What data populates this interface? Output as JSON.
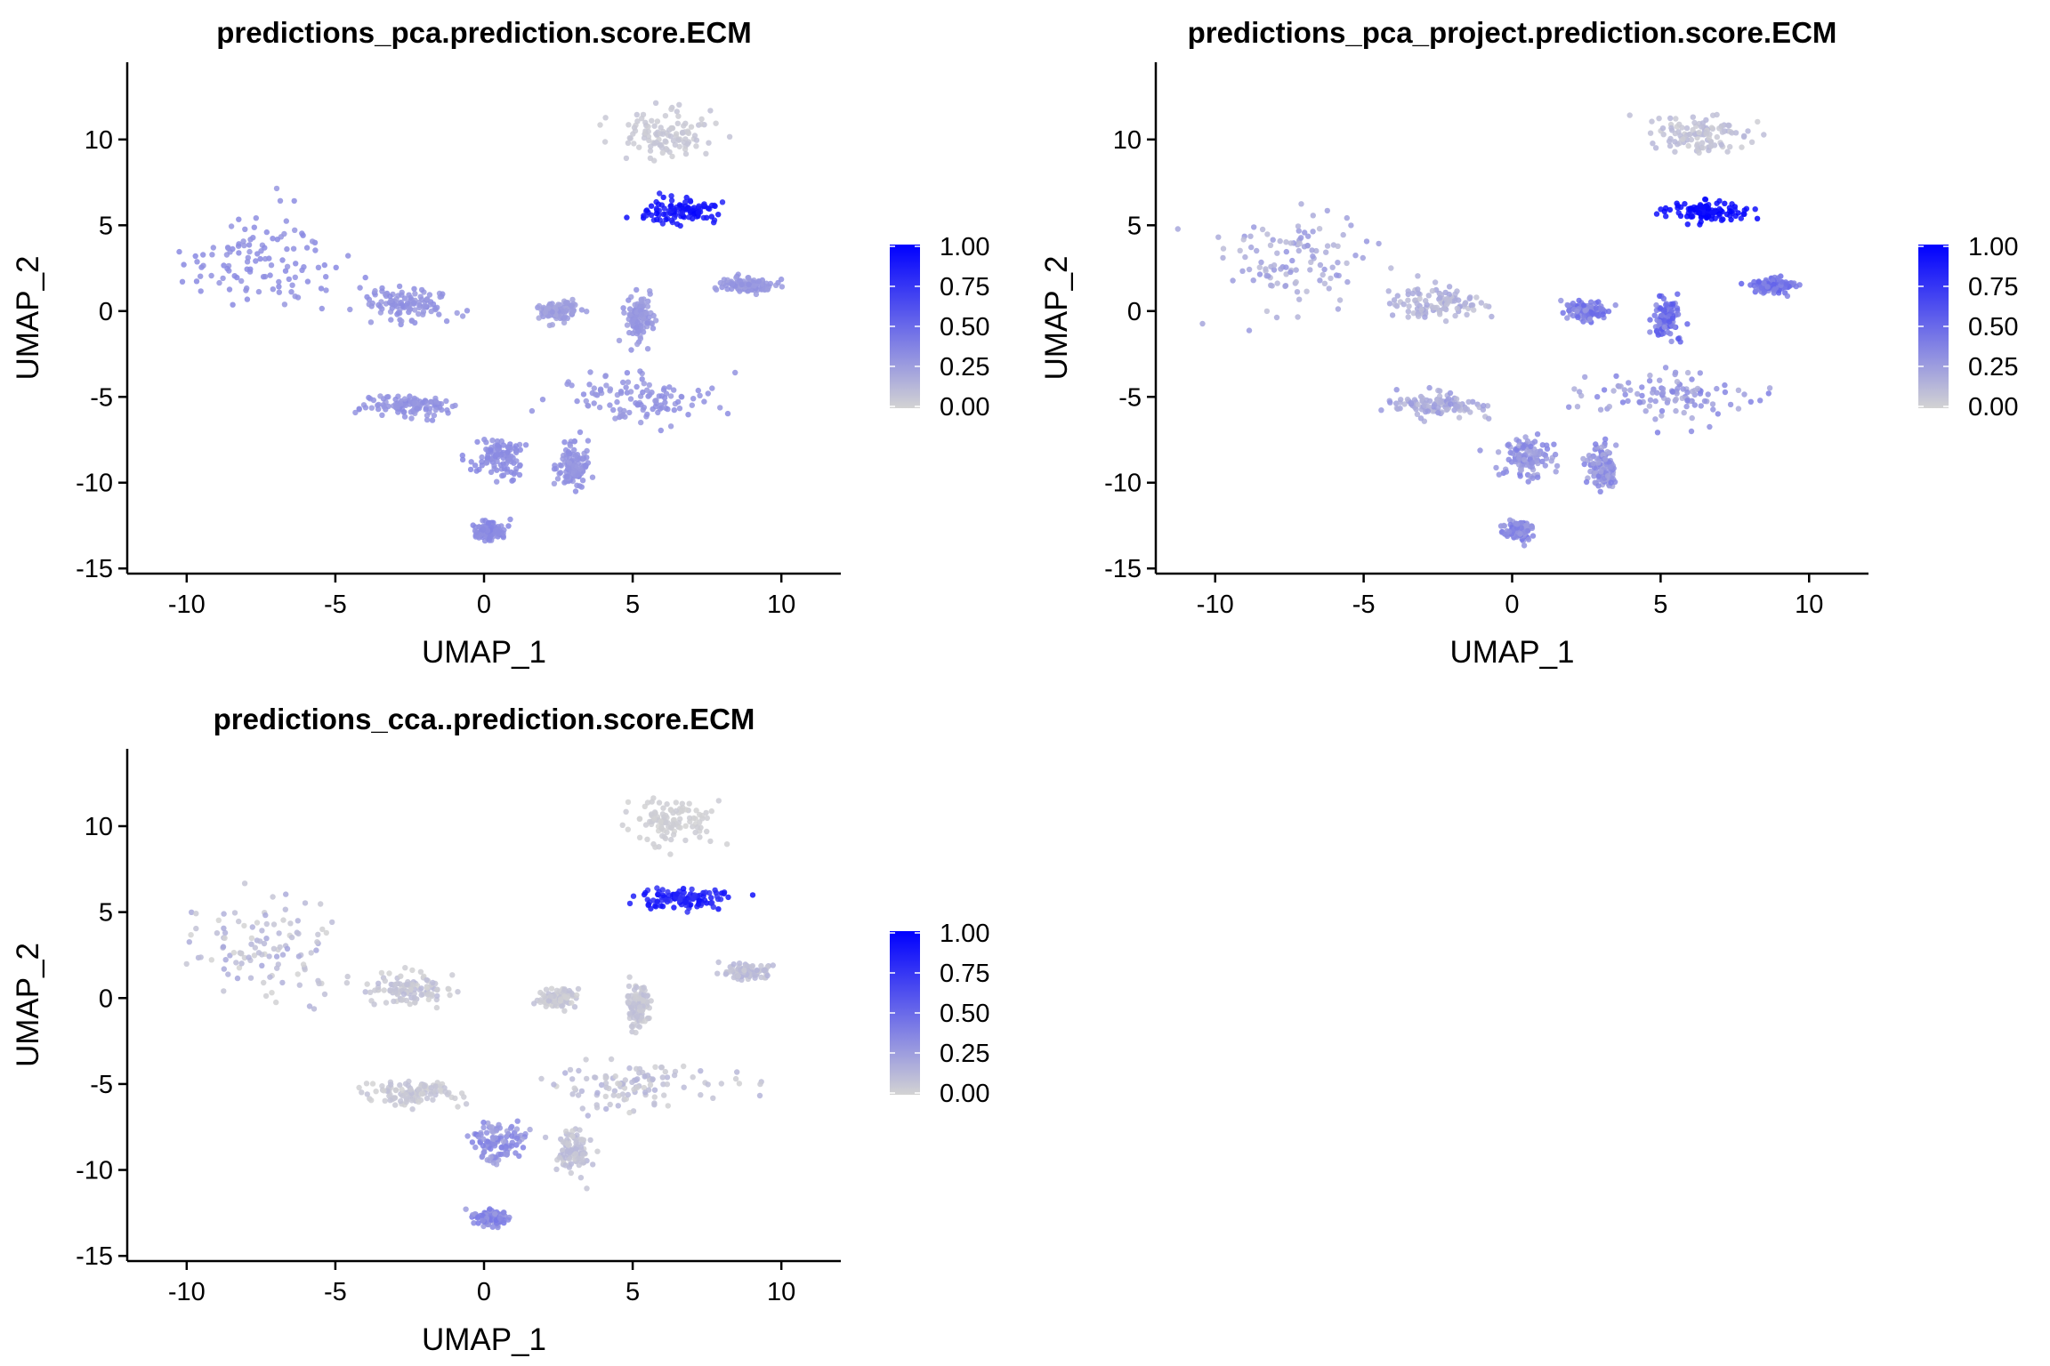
{
  "colors": {
    "low": "#d3d3d3",
    "high": "#0000ff",
    "axis": "#000000"
  },
  "chart_data": [
    {
      "type": "scatter",
      "title": "predictions_pca.prediction.score.ECM",
      "xlabel": "UMAP_1",
      "ylabel": "UMAP_2",
      "xlim": [
        -12,
        12
      ],
      "ylim": [
        -15.3,
        14.5
      ],
      "xticks": [
        -10,
        -5,
        0,
        5,
        10
      ],
      "yticks": [
        -15,
        -10,
        -5,
        0,
        5,
        10
      ],
      "x_tick_labels": [
        "-10",
        "-5",
        "0",
        "5",
        "10"
      ],
      "y_tick_labels": [
        "-15",
        "-10",
        "-5",
        "0",
        "5",
        "10"
      ],
      "legend": {
        "placement": "right",
        "values": [
          "1.00",
          "0.75",
          "0.50",
          "0.25",
          "0.00"
        ]
      },
      "grid": false,
      "clusters": [
        {
          "name": "c1",
          "center": [
            -7.5,
            3.0
          ],
          "spread": [
            2.3,
            2.6
          ],
          "score": 0.32,
          "variance": 0.04
        },
        {
          "name": "c2",
          "center": [
            -2.6,
            0.5
          ],
          "spread": [
            1.4,
            0.9
          ],
          "score": 0.3,
          "variance": 0.04
        },
        {
          "name": "c3",
          "center": [
            6.3,
            10.3
          ],
          "spread": [
            1.4,
            1.2
          ],
          "score": 0.05,
          "variance": 0.03
        },
        {
          "name": "c4",
          "center": [
            6.6,
            5.8
          ],
          "spread": [
            1.3,
            0.55
          ],
          "score": 0.9,
          "variance": 0.08
        },
        {
          "name": "c5",
          "center": [
            8.8,
            1.5
          ],
          "spread": [
            0.7,
            0.4
          ],
          "score": 0.28,
          "variance": 0.04
        },
        {
          "name": "c6",
          "center": [
            5.0,
            -5.0
          ],
          "spread": [
            2.5,
            1.3
          ],
          "score": 0.3,
          "variance": 0.04
        },
        {
          "name": "c7",
          "center": [
            -2.5,
            -5.5
          ],
          "spread": [
            1.5,
            0.6
          ],
          "score": 0.3,
          "variance": 0.04
        },
        {
          "name": "c8",
          "center": [
            0.5,
            -8.5
          ],
          "spread": [
            0.8,
            1.0
          ],
          "score": 0.33,
          "variance": 0.04
        },
        {
          "name": "c9",
          "center": [
            0.2,
            -12.8
          ],
          "spread": [
            0.5,
            0.5
          ],
          "score": 0.35,
          "variance": 0.04
        },
        {
          "name": "c10",
          "center": [
            3.0,
            -9.0
          ],
          "spread": [
            0.5,
            1.1
          ],
          "score": 0.3,
          "variance": 0.04
        },
        {
          "name": "c11",
          "center": [
            5.2,
            -0.5
          ],
          "spread": [
            0.4,
            1.2
          ],
          "score": 0.28,
          "variance": 0.04
        },
        {
          "name": "c12",
          "center": [
            2.5,
            0.0
          ],
          "spread": [
            0.6,
            0.5
          ],
          "score": 0.25,
          "variance": 0.04
        }
      ]
    },
    {
      "type": "scatter",
      "title": "predictions_pca_project.prediction.score.ECM",
      "xlabel": "UMAP_1",
      "ylabel": "UMAP_2",
      "xlim": [
        -12,
        12
      ],
      "ylim": [
        -15.3,
        14.5
      ],
      "xticks": [
        -10,
        -5,
        0,
        5,
        10
      ],
      "yticks": [
        -15,
        -10,
        -5,
        0,
        5,
        10
      ],
      "x_tick_labels": [
        "-10",
        "-5",
        "0",
        "5",
        "10"
      ],
      "y_tick_labels": [
        "-15",
        "-10",
        "-5",
        "0",
        "5",
        "10"
      ],
      "legend": {
        "placement": "right",
        "values": [
          "1.00",
          "0.75",
          "0.50",
          "0.25",
          "0.00"
        ]
      },
      "grid": false,
      "clusters": [
        {
          "name": "c1",
          "center": [
            -7.5,
            3.0
          ],
          "spread": [
            2.3,
            2.6
          ],
          "score": 0.2,
          "variance": 0.1
        },
        {
          "name": "c2",
          "center": [
            -2.6,
            0.5
          ],
          "spread": [
            1.4,
            0.9
          ],
          "score": 0.15,
          "variance": 0.08
        },
        {
          "name": "c3",
          "center": [
            6.3,
            10.3
          ],
          "spread": [
            1.4,
            1.2
          ],
          "score": 0.08,
          "variance": 0.06
        },
        {
          "name": "c4",
          "center": [
            6.6,
            5.8
          ],
          "spread": [
            1.3,
            0.55
          ],
          "score": 0.95,
          "variance": 0.05
        },
        {
          "name": "c5",
          "center": [
            8.8,
            1.5
          ],
          "spread": [
            0.7,
            0.4
          ],
          "score": 0.45,
          "variance": 0.1
        },
        {
          "name": "c6",
          "center": [
            5.0,
            -5.0
          ],
          "spread": [
            2.5,
            1.3
          ],
          "score": 0.28,
          "variance": 0.12
        },
        {
          "name": "c7",
          "center": [
            -2.5,
            -5.5
          ],
          "spread": [
            1.5,
            0.6
          ],
          "score": 0.2,
          "variance": 0.1
        },
        {
          "name": "c8",
          "center": [
            0.5,
            -8.5
          ],
          "spread": [
            0.8,
            1.0
          ],
          "score": 0.3,
          "variance": 0.1
        },
        {
          "name": "c9",
          "center": [
            0.2,
            -12.8
          ],
          "spread": [
            0.5,
            0.5
          ],
          "score": 0.35,
          "variance": 0.1
        },
        {
          "name": "c10",
          "center": [
            3.0,
            -9.0
          ],
          "spread": [
            0.5,
            1.1
          ],
          "score": 0.3,
          "variance": 0.1
        },
        {
          "name": "c11",
          "center": [
            5.2,
            -0.5
          ],
          "spread": [
            0.4,
            1.2
          ],
          "score": 0.45,
          "variance": 0.15
        },
        {
          "name": "c12",
          "center": [
            2.5,
            0.0
          ],
          "spread": [
            0.6,
            0.5
          ],
          "score": 0.4,
          "variance": 0.12
        }
      ]
    },
    {
      "type": "scatter",
      "title": "predictions_cca..prediction.score.ECM",
      "xlabel": "UMAP_1",
      "ylabel": "UMAP_2",
      "xlim": [
        -12,
        12
      ],
      "ylim": [
        -15.3,
        14.5
      ],
      "xticks": [
        -10,
        -5,
        0,
        5,
        10
      ],
      "yticks": [
        -15,
        -10,
        -5,
        0,
        5,
        10
      ],
      "x_tick_labels": [
        "-10",
        "-5",
        "0",
        "5",
        "10"
      ],
      "y_tick_labels": [
        "-15",
        "-10",
        "-5",
        "0",
        "5",
        "10"
      ],
      "legend": {
        "placement": "right",
        "values": [
          "1.00",
          "0.75",
          "0.50",
          "0.25",
          "0.00"
        ]
      },
      "grid": false,
      "clusters": [
        {
          "name": "c1",
          "center": [
            -7.5,
            3.0
          ],
          "spread": [
            2.3,
            2.6
          ],
          "score": 0.1,
          "variance": 0.12
        },
        {
          "name": "c2",
          "center": [
            -2.6,
            0.5
          ],
          "spread": [
            1.4,
            0.9
          ],
          "score": 0.06,
          "variance": 0.06
        },
        {
          "name": "c3",
          "center": [
            6.3,
            10.3
          ],
          "spread": [
            1.4,
            1.2
          ],
          "score": 0.02,
          "variance": 0.02
        },
        {
          "name": "c4",
          "center": [
            6.6,
            5.8
          ],
          "spread": [
            1.3,
            0.55
          ],
          "score": 0.85,
          "variance": 0.12
        },
        {
          "name": "c5",
          "center": [
            8.8,
            1.5
          ],
          "spread": [
            0.7,
            0.4
          ],
          "score": 0.1,
          "variance": 0.06
        },
        {
          "name": "c6",
          "center": [
            5.0,
            -5.0
          ],
          "spread": [
            2.5,
            1.3
          ],
          "score": 0.08,
          "variance": 0.08
        },
        {
          "name": "c7",
          "center": [
            -2.5,
            -5.5
          ],
          "spread": [
            1.5,
            0.6
          ],
          "score": 0.05,
          "variance": 0.05
        },
        {
          "name": "c8",
          "center": [
            0.5,
            -8.5
          ],
          "spread": [
            0.8,
            1.0
          ],
          "score": 0.3,
          "variance": 0.1
        },
        {
          "name": "c9",
          "center": [
            0.2,
            -12.8
          ],
          "spread": [
            0.5,
            0.5
          ],
          "score": 0.35,
          "variance": 0.1
        },
        {
          "name": "c10",
          "center": [
            3.0,
            -9.0
          ],
          "spread": [
            0.5,
            1.1
          ],
          "score": 0.08,
          "variance": 0.06
        },
        {
          "name": "c11",
          "center": [
            5.2,
            -0.5
          ],
          "spread": [
            0.4,
            1.2
          ],
          "score": 0.06,
          "variance": 0.05
        },
        {
          "name": "c12",
          "center": [
            2.5,
            0.0
          ],
          "spread": [
            0.6,
            0.5
          ],
          "score": 0.05,
          "variance": 0.05
        }
      ]
    }
  ]
}
